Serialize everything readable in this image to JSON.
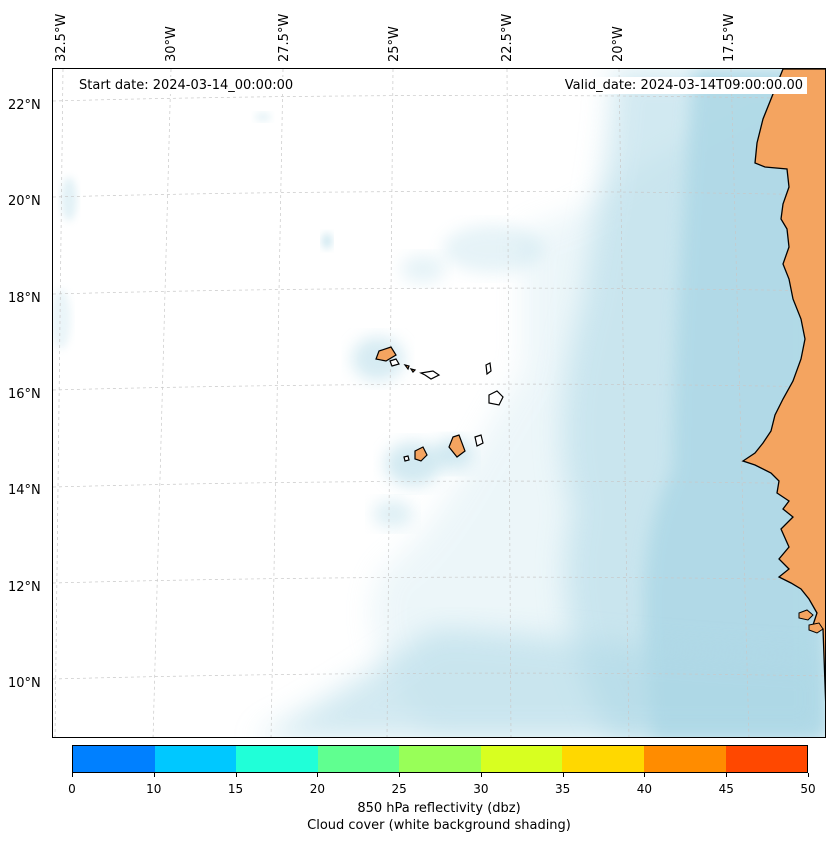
{
  "map": {
    "start_date": "Start date: 2024-03-14_00:00:00",
    "valid_date": "Valid_date: 2024-03-14T09:00:00.00",
    "lon_labels": [
      "32.5°W",
      "30°W",
      "27.5°W",
      "25°W",
      "22.5°W",
      "20°W",
      "17.5°W"
    ],
    "lat_labels": [
      "22°N",
      "20°N",
      "18°N",
      "16°N",
      "14°N",
      "12°N",
      "10°N"
    ],
    "land_color": "#f4a460",
    "cloud_color": "#add8e6",
    "gridlines": true
  },
  "colorbar": {
    "ticks": [
      "0",
      "10",
      "15",
      "20",
      "25",
      "30",
      "35",
      "40",
      "45",
      "50"
    ],
    "colors": [
      "#0080ff",
      "#00c8ff",
      "#20ffd8",
      "#60ff90",
      "#98ff58",
      "#d8ff20",
      "#ffd800",
      "#ff8c00",
      "#ff4800"
    ],
    "label": "850 hPa reflectivity (dbz)",
    "sublabel": "Cloud cover (white background shading)"
  }
}
